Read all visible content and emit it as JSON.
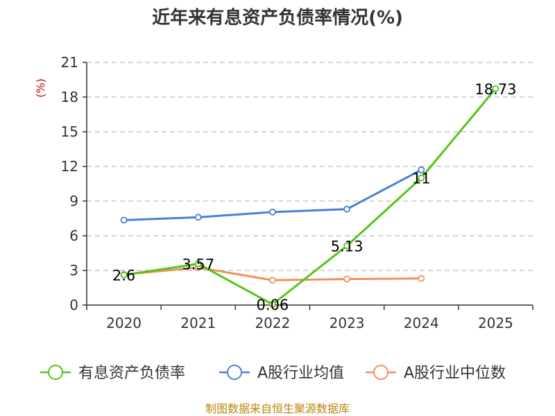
{
  "colors": {
    "series_0": "#52c41a",
    "series_1": "#4a7fd8",
    "series_2": "#f0905a",
    "axis": "#333333",
    "grid": "#bbbbbb",
    "title": "#333333",
    "unit": "#cc0000",
    "source": "#b8860b"
  },
  "chart_data": {
    "type": "line",
    "title": "近年来有息资产负债率情况(%)",
    "ylabel": "(%)",
    "categories": [
      "2020",
      "2021",
      "2022",
      "2023",
      "2024",
      "2025"
    ],
    "ylim": [
      0,
      21
    ],
    "yticks": [
      0,
      3,
      6,
      9,
      12,
      15,
      18,
      21
    ],
    "grid": "horizontal-dashed",
    "legend_position": "bottom",
    "series": [
      {
        "name": "有息资产负债率",
        "values": [
          2.6,
          3.57,
          0.06,
          5.13,
          11,
          18.73
        ],
        "data_labels": [
          "2.6",
          "3.57",
          "0.06",
          "5.13",
          "11",
          "18.73"
        ]
      },
      {
        "name": "A股行业均值",
        "values": [
          7.35,
          7.6,
          8.05,
          8.3,
          11.7,
          null
        ]
      },
      {
        "name": "A股行业中位数",
        "values": [
          2.65,
          3.25,
          2.15,
          2.25,
          2.3,
          null
        ]
      }
    ]
  },
  "source": "制图数据来自恒生聚源数据库"
}
